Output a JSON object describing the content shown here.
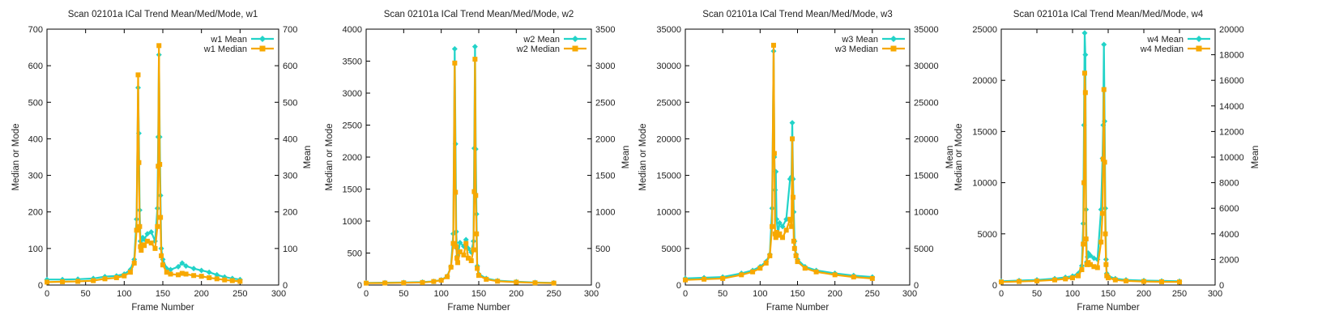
{
  "chart_data": [
    {
      "type": "line",
      "title": "Scan 02101a ICal Trend Mean/Med/Mode, w1",
      "xlabel": "Frame Number",
      "ylabel": "Median or Mode",
      "y2label": "Mean",
      "xlim": [
        0,
        300
      ],
      "xticks": [
        0,
        50,
        100,
        150,
        200,
        250,
        300
      ],
      "ylim": [
        0,
        700
      ],
      "yticks": [
        0,
        100,
        200,
        300,
        400,
        500,
        600,
        700
      ],
      "y2lim": [
        0,
        700
      ],
      "y2ticks": [
        0,
        100,
        200,
        300,
        400,
        500,
        600,
        700
      ],
      "legend_position": "top-right",
      "series": [
        {
          "name": "w1 Mean",
          "axis": "y2",
          "color": "#22d3c8",
          "marker": "diamond",
          "x": [
            0,
            20,
            40,
            60,
            75,
            90,
            100,
            108,
            113,
            116,
            118,
            119,
            120,
            121,
            122,
            124,
            126,
            130,
            135,
            140,
            143,
            144,
            145,
            146,
            147,
            148,
            150,
            155,
            160,
            170,
            175,
            180,
            190,
            200,
            210,
            220,
            230,
            240,
            250
          ],
          "values": [
            15,
            15,
            16,
            18,
            23,
            25,
            30,
            42,
            70,
            180,
            540,
            415,
            205,
            120,
            110,
            130,
            125,
            140,
            145,
            120,
            210,
            405,
            630,
            405,
            245,
            100,
            70,
            45,
            42,
            50,
            60,
            52,
            45,
            40,
            35,
            28,
            22,
            18,
            15
          ]
        },
        {
          "name": "w1 Median",
          "axis": "y",
          "color": "#f7a800",
          "marker": "square",
          "x": [
            0,
            20,
            40,
            60,
            75,
            90,
            100,
            108,
            113,
            116,
            118,
            119,
            120,
            121,
            122,
            124,
            126,
            130,
            135,
            140,
            143,
            144,
            145,
            146,
            147,
            148,
            150,
            155,
            160,
            170,
            175,
            180,
            190,
            200,
            210,
            220,
            230,
            240,
            250
          ],
          "values": [
            8,
            9,
            10,
            12,
            17,
            20,
            25,
            35,
            60,
            150,
            575,
            335,
            160,
            105,
            95,
            110,
            108,
            120,
            115,
            100,
            160,
            325,
            655,
            330,
            185,
            80,
            55,
            35,
            30,
            28,
            32,
            30,
            26,
            24,
            20,
            17,
            14,
            12,
            10
          ]
        }
      ]
    },
    {
      "type": "line",
      "title": "Scan 02101a ICal Trend Mean/Med/Mode, w2",
      "xlabel": "Frame Number",
      "ylabel": "Median or Mode",
      "y2label": "Mean",
      "xlim": [
        0,
        300
      ],
      "xticks": [
        0,
        50,
        100,
        150,
        200,
        250,
        300
      ],
      "ylim": [
        0,
        4000
      ],
      "yticks": [
        0,
        500,
        1000,
        1500,
        2000,
        2500,
        3000,
        3500,
        4000
      ],
      "y2lim": [
        0,
        3500
      ],
      "y2ticks": [
        0,
        500,
        1000,
        1500,
        2000,
        2500,
        3000,
        3500
      ],
      "legend_position": "top-right",
      "series": [
        {
          "name": "w2 Mean",
          "axis": "y2",
          "color": "#22d3c8",
          "marker": "diamond",
          "x": [
            0,
            25,
            50,
            75,
            90,
            100,
            108,
            113,
            116,
            118,
            119,
            120,
            121,
            122,
            125,
            130,
            133,
            136,
            140,
            143,
            144,
            145,
            146,
            147,
            148,
            150,
            160,
            175,
            200,
            225,
            250
          ],
          "values": [
            30,
            32,
            35,
            40,
            50,
            70,
            120,
            250,
            700,
            3230,
            1930,
            730,
            500,
            400,
            580,
            530,
            620,
            500,
            450,
            600,
            1870,
            3260,
            1860,
            970,
            260,
            150,
            90,
            60,
            45,
            35,
            30
          ]
        },
        {
          "name": "w2 Median",
          "axis": "y",
          "color": "#f7a800",
          "marker": "square",
          "x": [
            0,
            25,
            50,
            75,
            90,
            100,
            108,
            113,
            116,
            118,
            119,
            120,
            121,
            122,
            125,
            130,
            133,
            136,
            140,
            143,
            144,
            145,
            146,
            147,
            148,
            150,
            160,
            175,
            200,
            225,
            250
          ],
          "values": [
            30,
            32,
            35,
            40,
            55,
            75,
            130,
            280,
            650,
            3470,
            1450,
            600,
            420,
            350,
            520,
            470,
            650,
            420,
            380,
            550,
            1460,
            3530,
            1400,
            800,
            260,
            150,
            90,
            60,
            45,
            35,
            30
          ]
        }
      ]
    },
    {
      "type": "line",
      "title": "Scan 02101a ICal Trend Mean/Med/Mode, w3",
      "xlabel": "Frame Number",
      "ylabel": "Median or Mode",
      "y2label": "Mean",
      "xlim": [
        0,
        300
      ],
      "xticks": [
        0,
        50,
        100,
        150,
        200,
        250,
        300
      ],
      "ylim": [
        0,
        35000
      ],
      "yticks": [
        0,
        5000,
        10000,
        15000,
        20000,
        25000,
        30000,
        35000
      ],
      "y2lim": [
        0,
        35000
      ],
      "y2ticks": [
        0,
        5000,
        10000,
        15000,
        20000,
        25000,
        30000,
        35000
      ],
      "legend_position": "top-right",
      "series": [
        {
          "name": "w3 Mean",
          "axis": "y2",
          "color": "#22d3c8",
          "marker": "diamond",
          "x": [
            0,
            25,
            50,
            75,
            90,
            100,
            108,
            113,
            116,
            118,
            119,
            120,
            121,
            122,
            124,
            126,
            130,
            135,
            140,
            142,
            143,
            144,
            145,
            146,
            148,
            150,
            160,
            175,
            200,
            225,
            250
          ],
          "values": [
            900,
            1000,
            1100,
            1600,
            2000,
            2500,
            3200,
            4200,
            10500,
            32000,
            17500,
            13000,
            15500,
            9000,
            7000,
            8500,
            8000,
            9000,
            14500,
            14800,
            22200,
            14500,
            10000,
            6000,
            4200,
            3500,
            2500,
            2000,
            1600,
            1300,
            1100
          ]
        },
        {
          "name": "w3 Median",
          "axis": "y",
          "color": "#f7a800",
          "marker": "square",
          "x": [
            0,
            25,
            50,
            75,
            90,
            100,
            108,
            113,
            116,
            118,
            119,
            120,
            121,
            122,
            124,
            126,
            130,
            135,
            140,
            142,
            143,
            144,
            145,
            146,
            148,
            150,
            160,
            175,
            200,
            225,
            250
          ],
          "values": [
            700,
            800,
            900,
            1400,
            1800,
            2300,
            3000,
            4000,
            8000,
            32800,
            18000,
            7000,
            6500,
            7200,
            6800,
            7000,
            6500,
            7500,
            9000,
            8000,
            20000,
            12000,
            6000,
            5000,
            4000,
            3200,
            2300,
            1800,
            1400,
            1100,
            900
          ]
        }
      ]
    },
    {
      "type": "line",
      "title": "Scan 02101a ICal Trend Mean/Med/Mode, w4",
      "xlabel": "Frame Number",
      "ylabel": "Median or Mode",
      "y2label": "Mean",
      "xlim": [
        0,
        300
      ],
      "xticks": [
        0,
        50,
        100,
        150,
        200,
        250,
        300
      ],
      "ylim": [
        0,
        25000
      ],
      "yticks": [
        0,
        5000,
        10000,
        15000,
        20000,
        25000
      ],
      "y2lim": [
        0,
        20000
      ],
      "y2ticks": [
        0,
        2000,
        4000,
        6000,
        8000,
        10000,
        12000,
        14000,
        16000,
        18000,
        20000
      ],
      "legend_position": "top-right",
      "series": [
        {
          "name": "w4 Mean",
          "axis": "y2",
          "color": "#22d3c8",
          "marker": "diamond",
          "x": [
            0,
            25,
            50,
            75,
            90,
            100,
            108,
            113,
            115,
            116,
            117,
            118,
            119,
            120,
            121,
            122,
            125,
            130,
            135,
            140,
            142,
            143,
            144,
            145,
            146,
            147,
            148,
            150,
            160,
            175,
            200,
            225,
            250
          ],
          "values": [
            300,
            350,
            400,
            500,
            600,
            700,
            900,
            1500,
            4800,
            12500,
            19700,
            18000,
            5900,
            1800,
            2200,
            2500,
            2300,
            2100,
            2000,
            5900,
            9900,
            12500,
            18800,
            12800,
            6000,
            2000,
            900,
            700,
            500,
            400,
            350,
            320,
            300
          ]
        },
        {
          "name": "w4 Median",
          "axis": "y",
          "color": "#f7a800",
          "marker": "square",
          "x": [
            0,
            25,
            50,
            75,
            90,
            100,
            108,
            113,
            115,
            116,
            117,
            118,
            119,
            120,
            121,
            122,
            125,
            130,
            135,
            140,
            142,
            143,
            144,
            145,
            146,
            147,
            148,
            150,
            160,
            175,
            200,
            225,
            250
          ],
          "values": [
            300,
            350,
            400,
            500,
            600,
            700,
            900,
            1500,
            4000,
            10000,
            20700,
            18800,
            4500,
            2000,
            2000,
            2200,
            2000,
            1800,
            1700,
            4200,
            7000,
            12300,
            19100,
            12000,
            5000,
            2000,
            900,
            700,
            500,
            400,
            350,
            320,
            300
          ]
        }
      ]
    }
  ]
}
